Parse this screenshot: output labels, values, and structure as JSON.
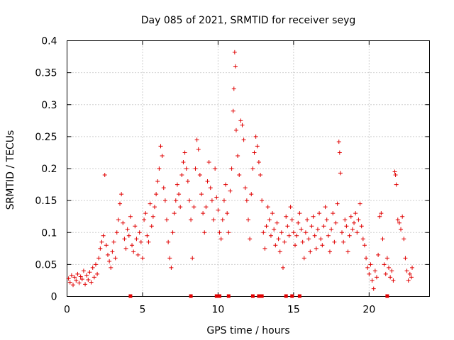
{
  "chart_data": {
    "type": "scatter",
    "title": "Day 085 of 2021, SRMTID for receiver seyg",
    "xlabel": "GPS time / hours",
    "ylabel": "SRMTID / TECUs",
    "xlim": [
      0,
      24
    ],
    "ylim": [
      0,
      0.4
    ],
    "xticks": [
      0,
      5,
      10,
      15,
      20
    ],
    "xtick_labels": [
      "0",
      "5",
      "10",
      "15",
      "20"
    ],
    "yticks": [
      0,
      0.05,
      0.1,
      0.15,
      0.2,
      0.25,
      0.3,
      0.35,
      0.4
    ],
    "ytick_labels": [
      "0",
      "0.05",
      "0.1",
      "0.15",
      "0.2",
      "0.25",
      "0.3",
      "0.35",
      "0.4"
    ],
    "grid": true,
    "marker": "plus",
    "color": "#e00000",
    "series": [
      {
        "name": "SRMTID",
        "points": [
          [
            0.1,
            0.028
          ],
          [
            0.2,
            0.022
          ],
          [
            0.3,
            0.033
          ],
          [
            0.4,
            0.018
          ],
          [
            0.5,
            0.03
          ],
          [
            0.6,
            0.025
          ],
          [
            0.7,
            0.035
          ],
          [
            0.8,
            0.021
          ],
          [
            0.9,
            0.031
          ],
          [
            1.0,
            0.027
          ],
          [
            1.1,
            0.04
          ],
          [
            1.2,
            0.019
          ],
          [
            1.3,
            0.033
          ],
          [
            1.4,
            0.026
          ],
          [
            1.5,
            0.038
          ],
          [
            1.6,
            0.022
          ],
          [
            1.7,
            0.045
          ],
          [
            1.8,
            0.03
          ],
          [
            1.9,
            0.05
          ],
          [
            2.0,
            0.035
          ],
          [
            2.1,
            0.06
          ],
          [
            2.2,
            0.075
          ],
          [
            2.3,
            0.085
          ],
          [
            2.4,
            0.095
          ],
          [
            2.5,
            0.19
          ],
          [
            2.6,
            0.08
          ],
          [
            2.7,
            0.065
          ],
          [
            2.8,
            0.055
          ],
          [
            2.9,
            0.045
          ],
          [
            3.0,
            0.07
          ],
          [
            3.1,
            0.085
          ],
          [
            3.2,
            0.06
          ],
          [
            3.3,
            0.1
          ],
          [
            3.4,
            0.12
          ],
          [
            3.5,
            0.145
          ],
          [
            3.6,
            0.16
          ],
          [
            3.7,
            0.115
          ],
          [
            3.8,
            0.09
          ],
          [
            3.9,
            0.075
          ],
          [
            4.0,
            0.105
          ],
          [
            4.1,
            0.095
          ],
          [
            4.2,
            0.125
          ],
          [
            4.3,
            0.08
          ],
          [
            4.4,
            0.07
          ],
          [
            4.5,
            0.11
          ],
          [
            4.6,
            0.09
          ],
          [
            4.7,
            0.065
          ],
          [
            4.8,
            0.1
          ],
          [
            4.9,
            0.085
          ],
          [
            5.0,
            0.06
          ],
          [
            5.1,
            0.12
          ],
          [
            5.2,
            0.13
          ],
          [
            5.3,
            0.095
          ],
          [
            5.4,
            0.085
          ],
          [
            5.5,
            0.145
          ],
          [
            5.6,
            0.11
          ],
          [
            5.7,
            0.125
          ],
          [
            5.8,
            0.14
          ],
          [
            5.9,
            0.16
          ],
          [
            6.0,
            0.18
          ],
          [
            6.1,
            0.2
          ],
          [
            6.2,
            0.235
          ],
          [
            6.3,
            0.22
          ],
          [
            6.4,
            0.17
          ],
          [
            6.5,
            0.15
          ],
          [
            6.6,
            0.12
          ],
          [
            6.7,
            0.085
          ],
          [
            6.8,
            0.06
          ],
          [
            6.9,
            0.045
          ],
          [
            7.0,
            0.1
          ],
          [
            7.1,
            0.13
          ],
          [
            7.2,
            0.15
          ],
          [
            7.3,
            0.175
          ],
          [
            7.4,
            0.16
          ],
          [
            7.5,
            0.14
          ],
          [
            7.6,
            0.19
          ],
          [
            7.7,
            0.21
          ],
          [
            7.8,
            0.225
          ],
          [
            7.9,
            0.2
          ],
          [
            8.0,
            0.18
          ],
          [
            8.1,
            0.15
          ],
          [
            8.2,
            0.12
          ],
          [
            8.3,
            0.06
          ],
          [
            8.4,
            0.14
          ],
          [
            8.5,
            0.2
          ],
          [
            8.6,
            0.245
          ],
          [
            8.7,
            0.23
          ],
          [
            8.8,
            0.19
          ],
          [
            8.9,
            0.16
          ],
          [
            9.0,
            0.13
          ],
          [
            9.1,
            0.1
          ],
          [
            9.2,
            0.14
          ],
          [
            9.3,
            0.18
          ],
          [
            9.4,
            0.21
          ],
          [
            9.5,
            0.17
          ],
          [
            9.6,
            0.15
          ],
          [
            9.7,
            0.12
          ],
          [
            9.8,
            0.2
          ],
          [
            9.9,
            0.155
          ],
          [
            10.0,
            0.135
          ],
          [
            10.1,
            0.1
          ],
          [
            10.2,
            0.09
          ],
          [
            10.3,
            0.12
          ],
          [
            10.4,
            0.15
          ],
          [
            10.5,
            0.175
          ],
          [
            10.6,
            0.13
          ],
          [
            10.7,
            0.1
          ],
          [
            10.8,
            0.165
          ],
          [
            10.9,
            0.2
          ],
          [
            11.0,
            0.29
          ],
          [
            11.05,
            0.325
          ],
          [
            11.1,
            0.382
          ],
          [
            11.15,
            0.36
          ],
          [
            11.2,
            0.26
          ],
          [
            11.3,
            0.22
          ],
          [
            11.4,
            0.19
          ],
          [
            11.5,
            0.275
          ],
          [
            11.6,
            0.268
          ],
          [
            11.7,
            0.245
          ],
          [
            11.8,
            0.17
          ],
          [
            11.9,
            0.15
          ],
          [
            12.0,
            0.12
          ],
          [
            12.1,
            0.09
          ],
          [
            12.2,
            0.16
          ],
          [
            12.3,
            0.2
          ],
          [
            12.4,
            0.225
          ],
          [
            12.5,
            0.25
          ],
          [
            12.6,
            0.235
          ],
          [
            12.7,
            0.21
          ],
          [
            12.8,
            0.19
          ],
          [
            12.9,
            0.15
          ],
          [
            13.0,
            0.1
          ],
          [
            13.1,
            0.075
          ],
          [
            13.2,
            0.11
          ],
          [
            13.3,
            0.14
          ],
          [
            13.4,
            0.12
          ],
          [
            13.5,
            0.095
          ],
          [
            13.6,
            0.13
          ],
          [
            13.7,
            0.105
          ],
          [
            13.8,
            0.08
          ],
          [
            13.9,
            0.115
          ],
          [
            14.0,
            0.09
          ],
          [
            14.1,
            0.07
          ],
          [
            14.2,
            0.1
          ],
          [
            14.3,
            0.045
          ],
          [
            14.4,
            0.085
          ],
          [
            14.5,
            0.125
          ],
          [
            14.6,
            0.11
          ],
          [
            14.7,
            0.095
          ],
          [
            14.8,
            0.14
          ],
          [
            14.9,
            0.12
          ],
          [
            15.0,
            0.1
          ],
          [
            15.1,
            0.08
          ],
          [
            15.2,
            0.095
          ],
          [
            15.3,
            0.115
          ],
          [
            15.4,
            0.13
          ],
          [
            15.5,
            0.105
          ],
          [
            15.6,
            0.085
          ],
          [
            15.7,
            0.06
          ],
          [
            15.8,
            0.1
          ],
          [
            15.9,
            0.12
          ],
          [
            16.0,
            0.09
          ],
          [
            16.1,
            0.07
          ],
          [
            16.2,
            0.11
          ],
          [
            16.3,
            0.125
          ],
          [
            16.4,
            0.095
          ],
          [
            16.5,
            0.075
          ],
          [
            16.6,
            0.105
          ],
          [
            16.7,
            0.13
          ],
          [
            16.8,
            0.09
          ],
          [
            16.9,
            0.08
          ],
          [
            17.0,
            0.11
          ],
          [
            17.1,
            0.14
          ],
          [
            17.2,
            0.12
          ],
          [
            17.3,
            0.095
          ],
          [
            17.4,
            0.07
          ],
          [
            17.5,
            0.105
          ],
          [
            17.6,
            0.13
          ],
          [
            17.7,
            0.085
          ],
          [
            17.8,
            0.115
          ],
          [
            17.9,
            0.145
          ],
          [
            18.0,
            0.242
          ],
          [
            18.05,
            0.225
          ],
          [
            18.1,
            0.193
          ],
          [
            18.2,
            0.1
          ],
          [
            18.3,
            0.085
          ],
          [
            18.4,
            0.12
          ],
          [
            18.5,
            0.11
          ],
          [
            18.6,
            0.07
          ],
          [
            18.7,
            0.095
          ],
          [
            18.8,
            0.125
          ],
          [
            18.9,
            0.105
          ],
          [
            19.0,
            0.115
          ],
          [
            19.1,
            0.13
          ],
          [
            19.2,
            0.1
          ],
          [
            19.3,
            0.12
          ],
          [
            19.4,
            0.145
          ],
          [
            19.5,
            0.11
          ],
          [
            19.6,
            0.09
          ],
          [
            19.7,
            0.08
          ],
          [
            19.8,
            0.06
          ],
          [
            19.9,
            0.045
          ],
          [
            20.0,
            0.035
          ],
          [
            20.1,
            0.05
          ],
          [
            20.2,
            0.025
          ],
          [
            20.3,
            0.012
          ],
          [
            20.4,
            0.04
          ],
          [
            20.5,
            0.03
          ],
          [
            20.6,
            0.065
          ],
          [
            20.7,
            0.125
          ],
          [
            20.8,
            0.13
          ],
          [
            20.9,
            0.09
          ],
          [
            21.0,
            0.05
          ],
          [
            21.1,
            0.035
          ],
          [
            21.2,
            0.06
          ],
          [
            21.3,
            0.045
          ],
          [
            21.4,
            0.03
          ],
          [
            21.5,
            0.04
          ],
          [
            21.6,
            0.025
          ],
          [
            21.7,
            0.195
          ],
          [
            21.75,
            0.19
          ],
          [
            21.8,
            0.175
          ],
          [
            21.9,
            0.12
          ],
          [
            22.0,
            0.115
          ],
          [
            22.1,
            0.105
          ],
          [
            22.2,
            0.125
          ],
          [
            22.3,
            0.09
          ],
          [
            22.4,
            0.06
          ],
          [
            22.5,
            0.04
          ],
          [
            22.6,
            0.025
          ],
          [
            22.7,
            0.035
          ],
          [
            22.8,
            0.03
          ],
          [
            22.85,
            0.045
          ]
        ]
      }
    ],
    "zero_markers_x": [
      4.2,
      8.2,
      9.9,
      10.1,
      10.7,
      12.3,
      12.7,
      12.9,
      14.5,
      14.9,
      15.4,
      21.2
    ]
  }
}
